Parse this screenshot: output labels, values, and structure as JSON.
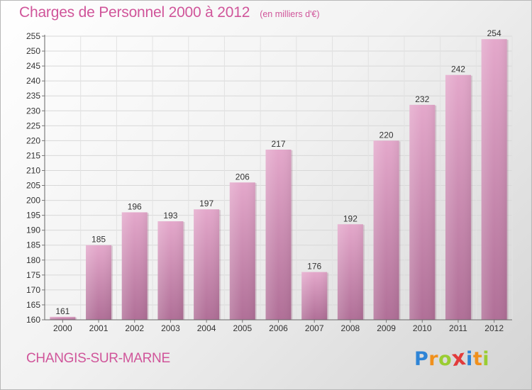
{
  "chart_data": {
    "type": "bar",
    "title": "Charges de Personnel 2000 à 2012",
    "subtitle": "(en milliers d'€)",
    "categories": [
      "2000",
      "2001",
      "2002",
      "2003",
      "2004",
      "2005",
      "2006",
      "2007",
      "2008",
      "2009",
      "2010",
      "2011",
      "2012"
    ],
    "values": [
      161,
      185,
      196,
      193,
      197,
      206,
      217,
      176,
      192,
      220,
      232,
      242,
      254
    ],
    "ylim": [
      160,
      255
    ],
    "yticks": [
      160,
      165,
      170,
      175,
      180,
      185,
      190,
      195,
      200,
      205,
      210,
      215,
      220,
      225,
      230,
      235,
      240,
      245,
      250,
      255
    ],
    "grid": true,
    "bar_color": "#d67bab"
  },
  "footer": {
    "commune": "CHANGIS-SUR-MARNE",
    "logo_letters": [
      {
        "ch": "P",
        "color": "#2e84d6"
      },
      {
        "ch": "r",
        "color": "#f0901c"
      },
      {
        "ch": "o",
        "color": "#9acd32"
      },
      {
        "ch": "x",
        "color": "#e23b3b"
      },
      {
        "ch": "i",
        "color": "#2e84d6"
      },
      {
        "ch": "t",
        "color": "#f0901c"
      },
      {
        "ch": "i",
        "color": "#9acd32"
      }
    ]
  }
}
